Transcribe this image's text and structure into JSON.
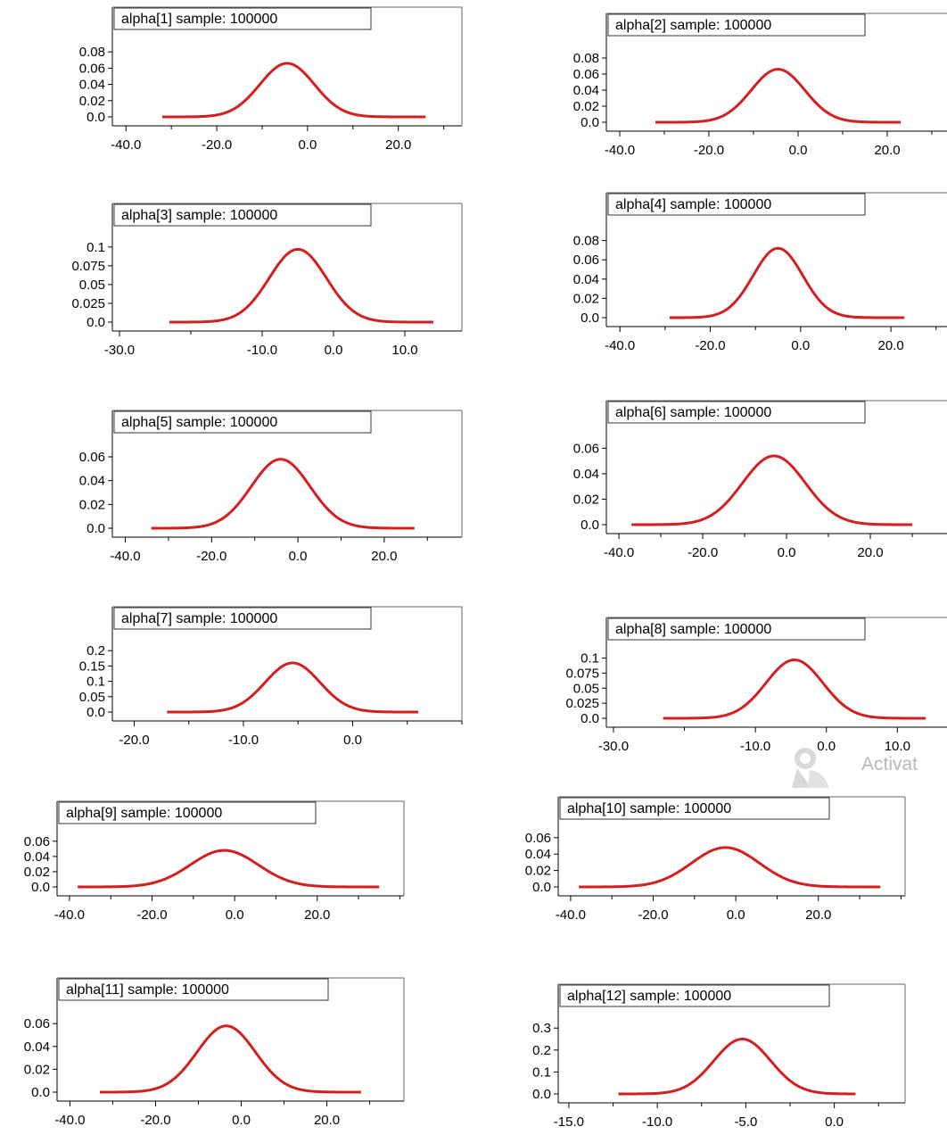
{
  "figure": {
    "line_color": "#d41f1f",
    "axis_color": "#000000"
  },
  "chart_data": [
    {
      "type": "line",
      "title": "alpha[1] sample: 100000",
      "mean": -4.5,
      "sd": 6.0,
      "x_range": [
        -32,
        26
      ],
      "xlim": [
        -43,
        34
      ],
      "ylim": [
        0,
        0.1
      ],
      "x_ticks": [
        -40,
        -20,
        0,
        20
      ],
      "x_tick_labels": [
        "-40.0",
        "-20.0",
        "0.0",
        "20.0"
      ],
      "y_ticks": [
        0,
        0.02,
        0.04,
        0.06,
        0.08
      ],
      "y_tick_labels": [
        "0.0",
        "0.02",
        "0.04",
        "0.06",
        "0.08"
      ],
      "peak": 0.066
    },
    {
      "type": "line",
      "title": "alpha[2] sample: 100000",
      "mean": -4.5,
      "sd": 6.0,
      "x_range": [
        -32,
        23
      ],
      "xlim": [
        -43,
        35
      ],
      "ylim": [
        0,
        0.1
      ],
      "x_ticks": [
        -40,
        -20,
        0,
        20
      ],
      "x_tick_labels": [
        "-40.0",
        "-20.0",
        "0.0",
        "20.0"
      ],
      "y_ticks": [
        0,
        0.02,
        0.04,
        0.06,
        0.08
      ],
      "y_tick_labels": [
        "0.0",
        "0.02",
        "0.04",
        "0.06",
        "0.08"
      ],
      "peak": 0.066
    },
    {
      "type": "line",
      "title": "alpha[3] sample: 100000",
      "mean": -5,
      "sd": 4.0,
      "x_range": [
        -23,
        14
      ],
      "xlim": [
        -31,
        18
      ],
      "ylim": [
        0,
        0.12
      ],
      "x_ticks": [
        -30,
        -10,
        0,
        10
      ],
      "x_tick_labels": [
        "-30.0",
        "-10.0",
        "0.0",
        "10.0"
      ],
      "y_ticks": [
        0,
        0.025,
        0.05,
        0.075,
        0.1
      ],
      "y_tick_labels": [
        "0.0",
        "0.025",
        "0.05",
        "0.075",
        "0.1"
      ],
      "peak": 0.097
    },
    {
      "type": "line",
      "title": "alpha[4] sample: 100000",
      "mean": -5,
      "sd": 5.5,
      "x_range": [
        -29,
        23
      ],
      "xlim": [
        -43,
        34
      ],
      "ylim": [
        0,
        0.1
      ],
      "x_ticks": [
        -40,
        -20,
        0,
        20
      ],
      "x_tick_labels": [
        "-40.0",
        "-20.0",
        "0.0",
        "20.0"
      ],
      "y_ticks": [
        0,
        0.02,
        0.04,
        0.06,
        0.08
      ],
      "y_tick_labels": [
        "0.0",
        "0.02",
        "0.04",
        "0.06",
        "0.08"
      ],
      "peak": 0.072
    },
    {
      "type": "line",
      "title": "alpha[5] sample: 100000",
      "mean": -4,
      "sd": 6.8,
      "x_range": [
        -34,
        27
      ],
      "xlim": [
        -43,
        38
      ],
      "ylim": [
        0,
        0.075
      ],
      "x_ticks": [
        -40,
        -20,
        0,
        20
      ],
      "x_tick_labels": [
        "-40.0",
        "-20.0",
        "0.0",
        "20.0"
      ],
      "y_ticks": [
        0,
        0.02,
        0.04,
        0.06
      ],
      "y_tick_labels": [
        "0.0",
        "0.02",
        "0.04",
        "0.06"
      ],
      "peak": 0.058
    },
    {
      "type": "line",
      "title": "alpha[6] sample: 100000",
      "mean": -3,
      "sd": 7.5,
      "x_range": [
        -37,
        30
      ],
      "xlim": [
        -43,
        40
      ],
      "ylim": [
        0,
        0.075
      ],
      "x_ticks": [
        -40,
        -20,
        0,
        20
      ],
      "x_tick_labels": [
        "-40.0",
        "-20.0",
        "0.0",
        "20.0"
      ],
      "y_ticks": [
        0,
        0.02,
        0.04,
        0.06
      ],
      "y_tick_labels": [
        "0.0",
        "0.02",
        "0.04",
        "0.06"
      ],
      "peak": 0.054
    },
    {
      "type": "line",
      "title": "alpha[7] sample: 100000",
      "mean": -5.5,
      "sd": 2.5,
      "x_range": [
        -17,
        6
      ],
      "xlim": [
        -22,
        10
      ],
      "ylim": [
        0,
        0.25
      ],
      "x_ticks": [
        -20,
        -10,
        0
      ],
      "x_tick_labels": [
        "-20.0",
        "-10.0",
        "0.0"
      ],
      "y_ticks": [
        0,
        0.05,
        0.1,
        0.15,
        0.2
      ],
      "y_tick_labels": [
        "0.0",
        "0.05",
        "0.1",
        "0.15",
        "0.2"
      ],
      "peak": 0.16
    },
    {
      "type": "line",
      "title": "alpha[8] sample: 100000",
      "mean": -4.5,
      "sd": 4.0,
      "x_range": [
        -23,
        14
      ],
      "xlim": [
        -31,
        18
      ],
      "ylim": [
        0,
        0.12
      ],
      "x_ticks": [
        -30,
        -10,
        0,
        10
      ],
      "x_tick_labels": [
        "-30.0",
        "-10.0",
        "0.0",
        "10.0"
      ],
      "y_ticks": [
        0,
        0.025,
        0.05,
        0.075,
        0.1
      ],
      "y_tick_labels": [
        "0.0",
        "0.025",
        "0.05",
        "0.075",
        "0.1"
      ],
      "peak": 0.097
    },
    {
      "type": "line",
      "title": "alpha[9] sample: 100000",
      "mean": -2.5,
      "sd": 8.2,
      "x_range": [
        -38,
        35
      ],
      "xlim": [
        -43,
        41
      ],
      "ylim": [
        0,
        0.075
      ],
      "x_ticks": [
        -40,
        -20,
        0,
        20
      ],
      "x_tick_labels": [
        "-40.0",
        "-20.0",
        "0.0",
        "20.0"
      ],
      "y_ticks": [
        0,
        0.02,
        0.04,
        0.06
      ],
      "y_tick_labels": [
        "0.0",
        "0.02",
        "0.04",
        "0.06"
      ],
      "peak": 0.048
    },
    {
      "type": "line",
      "title": "alpha[10] sample: 100000",
      "mean": -2.5,
      "sd": 8.2,
      "x_range": [
        -38,
        35
      ],
      "xlim": [
        -43,
        41
      ],
      "ylim": [
        0,
        0.075
      ],
      "x_ticks": [
        -40,
        -20,
        0,
        20
      ],
      "x_tick_labels": [
        "-40.0",
        "-20.0",
        "0.0",
        "20.0"
      ],
      "y_ticks": [
        0,
        0.02,
        0.04,
        0.06
      ],
      "y_tick_labels": [
        "0.0",
        "0.02",
        "0.04",
        "0.06"
      ],
      "peak": 0.048
    },
    {
      "type": "line",
      "title": "alpha[11] sample: 100000",
      "mean": -3.5,
      "sd": 6.8,
      "x_range": [
        -33,
        28
      ],
      "xlim": [
        -43,
        38
      ],
      "ylim": [
        0,
        0.075
      ],
      "x_ticks": [
        -40,
        -20,
        0,
        20
      ],
      "x_tick_labels": [
        "-40.0",
        "-20.0",
        "0.0",
        "20.0"
      ],
      "y_ticks": [
        0,
        0.02,
        0.04,
        0.06
      ],
      "y_tick_labels": [
        "0.0",
        "0.02",
        "0.04",
        "0.06"
      ],
      "peak": 0.058
    },
    {
      "type": "line",
      "title": "alpha[12] sample: 100000",
      "mean": -5.2,
      "sd": 1.6,
      "x_range": [
        -12.2,
        1.2
      ],
      "xlim": [
        -15.6,
        4
      ],
      "ylim": [
        0,
        0.37
      ],
      "x_ticks": [
        -15,
        -10,
        -5,
        0
      ],
      "x_tick_labels": [
        "-15.0",
        "-10.0",
        "-5.0",
        "0.0"
      ],
      "y_ticks": [
        0,
        0.1,
        0.2,
        0.3
      ],
      "y_tick_labels": [
        "0.0",
        "0.1",
        "0.2",
        "0.3"
      ],
      "peak": 0.25
    }
  ],
  "watermark": {
    "icon": "person-magnifier-icon",
    "text": "Activat"
  }
}
